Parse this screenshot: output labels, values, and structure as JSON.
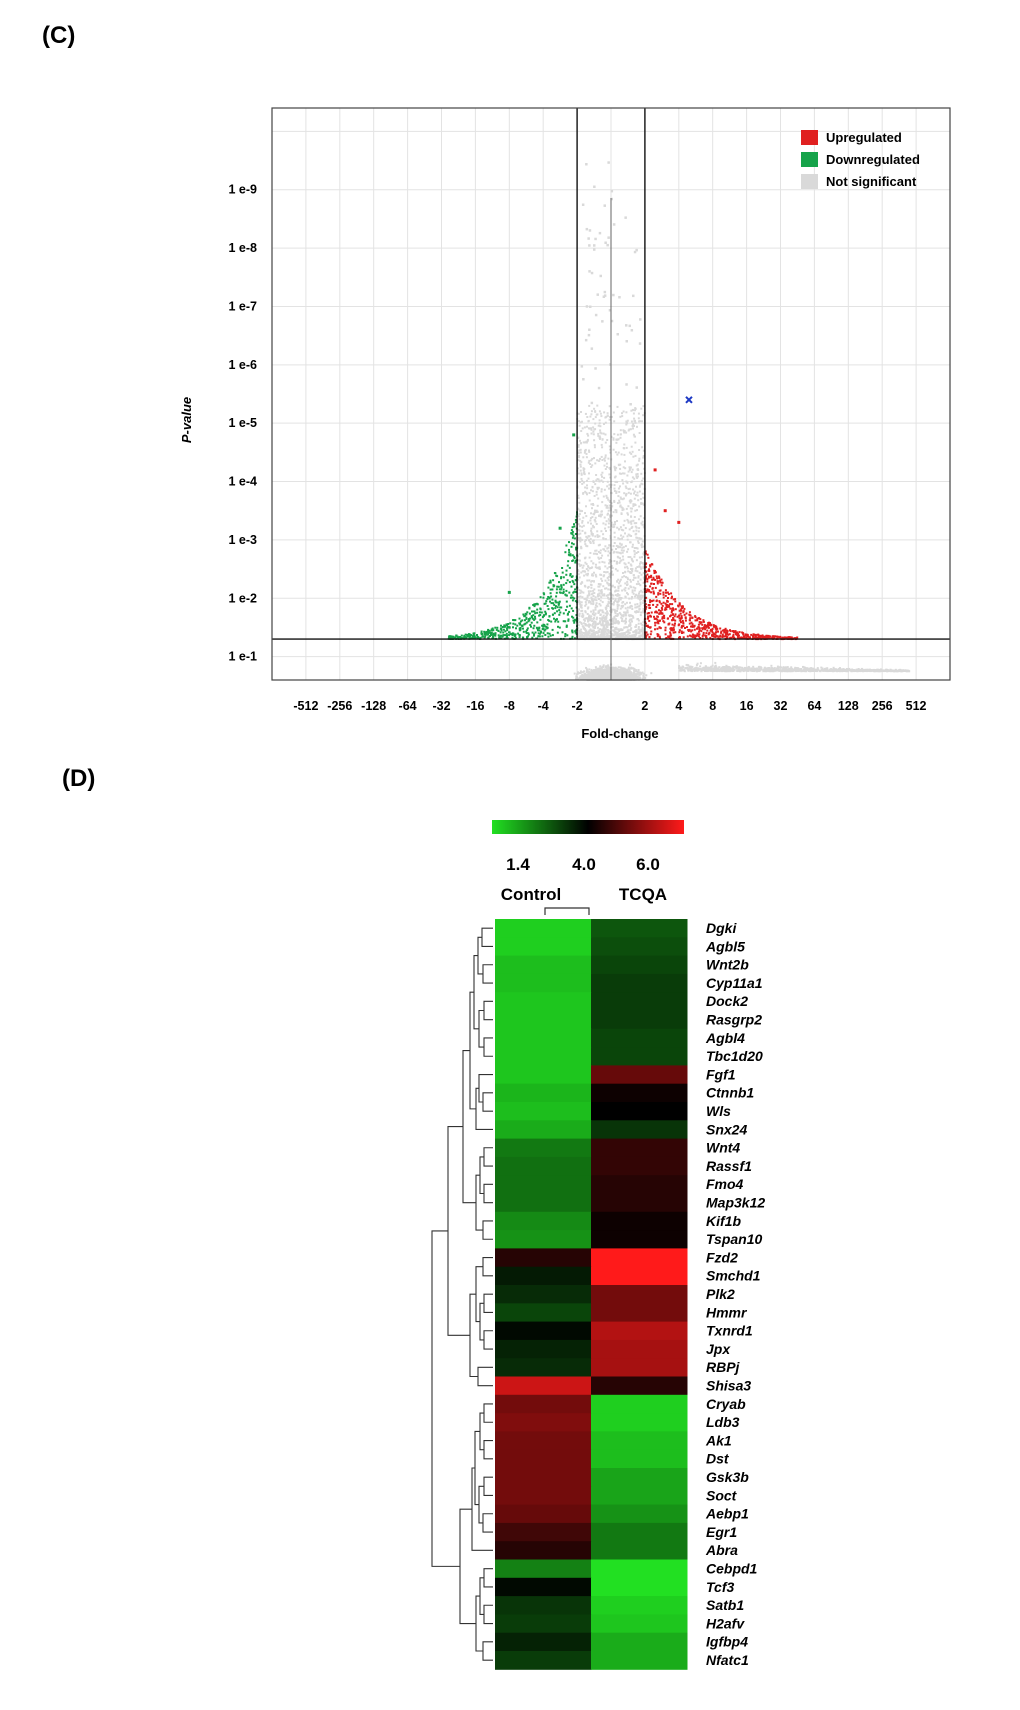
{
  "panels": {
    "c_label": "(C)",
    "d_label": "(D)"
  },
  "chart_data": [
    {
      "type": "scatter",
      "subtype": "volcano",
      "xlabel": "Fold-change",
      "ylabel": "P-value",
      "x_ticks": [
        "-512",
        "-256",
        "-128",
        "-64",
        "-32",
        "-16",
        "-8",
        "-4",
        "-2",
        "2",
        "4",
        "8",
        "16",
        "32",
        "64",
        "128",
        "256",
        "512"
      ],
      "y_ticks": [
        "1 e-9",
        "1 e-8",
        "1 e-7",
        "1 e-6",
        "1 e-5",
        "1 e-4",
        "1 e-3",
        "1 e-2",
        "1 e-1"
      ],
      "xlim_log2": [
        -10,
        10
      ],
      "ylim_neglog10": [
        0.6,
        10.4
      ],
      "fold_change_thresholds": [
        -2,
        2
      ],
      "p_value_threshold": 0.05,
      "legend": [
        {
          "label": "Upregulated",
          "color": "#e02020"
        },
        {
          "label": "Downregulated",
          "color": "#16a34a"
        },
        {
          "label": "Not significant",
          "color": "#d9d9d9"
        }
      ],
      "legend_position": "top-right",
      "highlight_point": {
        "log2fc": 2.3,
        "neglog10p": 5.4,
        "color": "#1d39c4"
      }
    },
    {
      "type": "heatmap",
      "colorbar": {
        "low_color": "#22e022",
        "mid_color": "#000000",
        "high_color": "#ff1a1a",
        "ticks": [
          "1.4",
          "4.0",
          "6.0"
        ]
      },
      "columns": [
        "Control",
        "TCQA"
      ],
      "rows": [
        "Dgki",
        "Agbl5",
        "Wnt2b",
        "Cyp11a1",
        "Dock2",
        "Rasgrp2",
        "Agbl4",
        "Tbc1d20",
        "Fgf1",
        "Ctnnb1",
        "Wls",
        "Snx24",
        "Wnt4",
        "Rassf1",
        "Fmo4",
        "Map3k12",
        "Kif1b",
        "Tspan10",
        "Fzd2",
        "Smchd1",
        "Plk2",
        "Hmmr",
        "Txnrd1",
        "Jpx",
        "RBPj",
        "Shisa3",
        "Cryab",
        "Ldb3",
        "Ak1",
        "Dst",
        "Gsk3b",
        "Soct",
        "Aebp1",
        "Egr1",
        "Abra",
        "Cebpd1",
        "Tcf3",
        "Satb1",
        "H2afv",
        "Igfbp4",
        "Nfatc1"
      ],
      "values": [
        [
          1.6,
          3.0
        ],
        [
          1.6,
          3.1
        ],
        [
          1.8,
          3.2
        ],
        [
          1.8,
          3.3
        ],
        [
          1.7,
          3.3
        ],
        [
          1.7,
          3.3
        ],
        [
          1.7,
          3.2
        ],
        [
          1.7,
          3.2
        ],
        [
          1.7,
          4.8
        ],
        [
          1.9,
          4.1
        ],
        [
          1.8,
          4.0
        ],
        [
          2.0,
          3.4
        ],
        [
          2.6,
          4.4
        ],
        [
          2.7,
          4.4
        ],
        [
          2.7,
          4.3
        ],
        [
          2.7,
          4.3
        ],
        [
          2.4,
          4.1
        ],
        [
          2.3,
          4.1
        ],
        [
          4.3,
          6.0
        ],
        [
          3.7,
          6.0
        ],
        [
          3.5,
          4.9
        ],
        [
          3.2,
          4.9
        ],
        [
          3.9,
          5.4
        ],
        [
          3.6,
          5.3
        ],
        [
          3.5,
          5.3
        ],
        [
          5.6,
          4.3
        ],
        [
          4.9,
          1.6
        ],
        [
          5.0,
          1.6
        ],
        [
          4.9,
          1.8
        ],
        [
          4.9,
          1.8
        ],
        [
          4.9,
          2.1
        ],
        [
          4.9,
          2.1
        ],
        [
          4.8,
          2.3
        ],
        [
          4.5,
          2.6
        ],
        [
          4.3,
          2.6
        ],
        [
          2.5,
          1.4
        ],
        [
          3.9,
          1.4
        ],
        [
          3.4,
          1.6
        ],
        [
          3.3,
          1.7
        ],
        [
          3.6,
          2.0
        ],
        [
          3.3,
          2.0
        ]
      ]
    }
  ]
}
